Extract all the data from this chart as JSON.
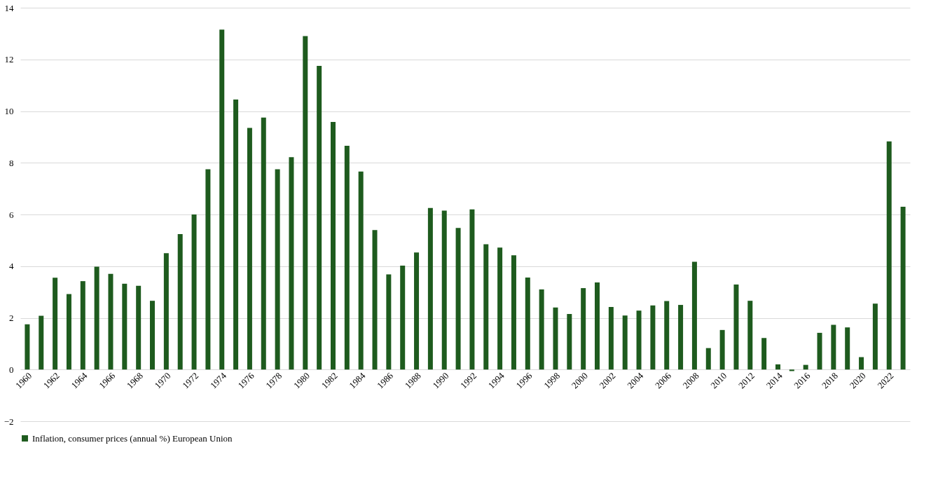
{
  "chart_data": {
    "type": "bar",
    "categories": [
      "1960",
      null,
      "1962",
      null,
      "1964",
      null,
      "1966",
      null,
      "1968",
      null,
      "1970",
      null,
      "1972",
      null,
      "1974",
      null,
      "1976",
      null,
      "1978",
      null,
      "1980",
      null,
      "1982",
      null,
      "1984",
      null,
      "1986",
      null,
      "1988",
      null,
      "1990",
      null,
      "1992",
      null,
      "1994",
      null,
      "1996",
      null,
      "1998",
      null,
      "2000",
      null,
      "2002",
      null,
      "2004",
      null,
      "2006",
      null,
      "2008",
      null,
      "2010",
      null,
      "2012",
      null,
      "2014",
      null,
      "2016",
      null,
      "2018",
      null,
      "2020",
      null,
      "2022",
      null
    ],
    "series": [
      {
        "name": "Inflation, consumer prices (annual %) European Union",
        "color": "#1e5b1e",
        "values": [
          1.75,
          2.08,
          3.55,
          2.92,
          3.42,
          3.98,
          3.7,
          3.32,
          3.24,
          2.66,
          4.5,
          5.24,
          6.0,
          7.75,
          13.15,
          10.45,
          9.35,
          9.75,
          7.75,
          8.22,
          12.9,
          11.75,
          9.58,
          8.66,
          7.66,
          5.4,
          3.68,
          4.02,
          4.53,
          6.25,
          6.15,
          5.48,
          6.2,
          4.85,
          4.72,
          4.42,
          3.56,
          3.1,
          2.4,
          2.15,
          3.15,
          3.37,
          2.42,
          2.09,
          2.28,
          2.48,
          2.65,
          2.5,
          4.17,
          0.83,
          1.53,
          3.29,
          2.66,
          1.22,
          0.2,
          -0.06,
          0.18,
          1.42,
          1.73,
          1.63,
          0.48,
          2.55,
          8.83,
          6.3
        ]
      }
    ],
    "ylim": [
      -2,
      14
    ],
    "yticks": [
      -2,
      0,
      2,
      4,
      6,
      8,
      10,
      12,
      14
    ],
    "grid": "y",
    "legend": "bottom"
  }
}
